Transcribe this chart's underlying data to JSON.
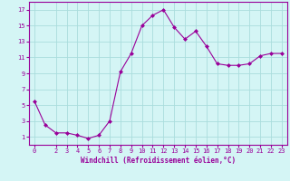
{
  "x": [
    0,
    1,
    2,
    3,
    4,
    5,
    6,
    7,
    8,
    9,
    10,
    11,
    12,
    13,
    14,
    15,
    16,
    17,
    18,
    19,
    20,
    21,
    22,
    23
  ],
  "y": [
    5.5,
    2.5,
    1.5,
    1.5,
    1.2,
    0.8,
    1.2,
    3.0,
    9.2,
    11.5,
    15.0,
    16.3,
    17.0,
    14.8,
    13.3,
    14.3,
    12.4,
    10.2,
    10.0,
    10.0,
    10.2,
    11.2,
    11.5,
    11.5
  ],
  "line_color": "#990099",
  "marker": "D",
  "marker_size": 2,
  "bg_color": "#d4f5f5",
  "grid_color": "#aadddd",
  "xlabel": "Windchill (Refroidissement éolien,°C)",
  "xlabel_color": "#990099",
  "tick_color": "#990099",
  "xlim": [
    -0.5,
    23.5
  ],
  "ylim": [
    0,
    18
  ],
  "yticks": [
    1,
    3,
    5,
    7,
    9,
    11,
    13,
    15,
    17
  ],
  "xticks": [
    0,
    2,
    3,
    4,
    5,
    6,
    7,
    8,
    9,
    10,
    11,
    12,
    13,
    14,
    15,
    16,
    17,
    18,
    19,
    20,
    21,
    22,
    23
  ],
  "tick_fontsize": 5.0,
  "xlabel_fontsize": 5.5
}
